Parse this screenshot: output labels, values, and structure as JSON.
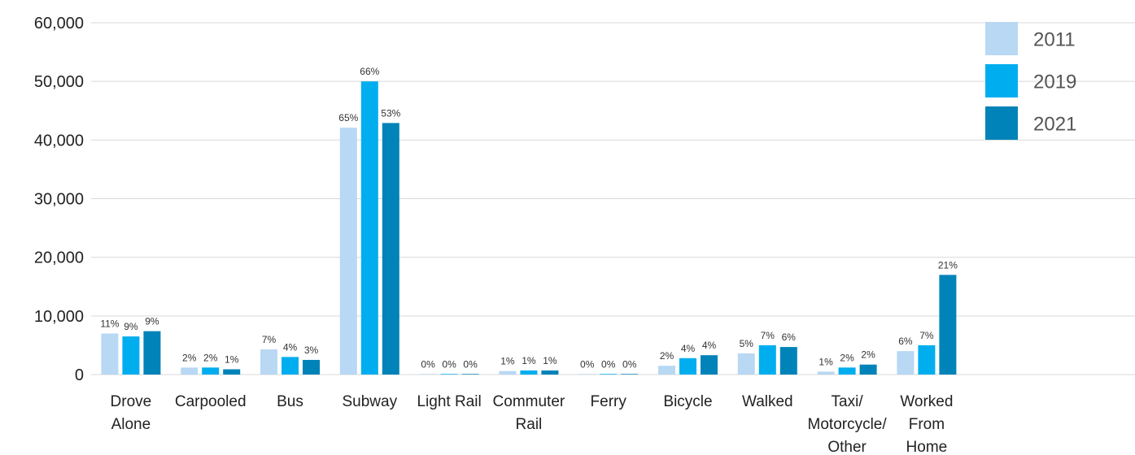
{
  "chart_data": {
    "type": "bar",
    "categories": [
      [
        "Drove",
        "Alone"
      ],
      [
        "Carpooled"
      ],
      [
        "Bus"
      ],
      [
        "Subway"
      ],
      [
        "Light Rail"
      ],
      [
        "Commuter",
        "Rail"
      ],
      [
        "Ferry"
      ],
      [
        "Bicycle"
      ],
      [
        "Walked"
      ],
      [
        "Taxi/",
        "Motorcycle/",
        "Other"
      ],
      [
        "Worked",
        "From",
        "Home"
      ]
    ],
    "series": [
      {
        "name": "2011",
        "color": "#b8d8f4",
        "values": [
          7000,
          1200,
          4300,
          42100,
          100,
          600,
          100,
          1500,
          3600,
          500,
          4000
        ],
        "labels": [
          "11%",
          "2%",
          "7%",
          "65%",
          "0%",
          "1%",
          "0%",
          "2%",
          "5%",
          "1%",
          "6%"
        ]
      },
      {
        "name": "2019",
        "color": "#00aeef",
        "values": [
          6500,
          1200,
          3000,
          50000,
          100,
          700,
          100,
          2800,
          5000,
          1200,
          5000
        ],
        "labels": [
          "9%",
          "2%",
          "4%",
          "66%",
          "0%",
          "1%",
          "0%",
          "4%",
          "7%",
          "2%",
          "7%"
        ]
      },
      {
        "name": "2021",
        "color": "#0083b8",
        "values": [
          7400,
          900,
          2500,
          42900,
          100,
          700,
          100,
          3300,
          4700,
          1700,
          17000
        ],
        "labels": [
          "9%",
          "1%",
          "3%",
          "53%",
          "0%",
          "1%",
          "0%",
          "4%",
          "6%",
          "2%",
          "21%"
        ]
      }
    ],
    "ylim": [
      0,
      60000
    ],
    "yticks": [
      0,
      10000,
      20000,
      30000,
      40000,
      50000,
      60000
    ],
    "ytick_labels": [
      "0",
      "10,000",
      "20,000",
      "30,000",
      "40,000",
      "50,000",
      "60,000"
    ],
    "grid": true,
    "legend_position": "top-right",
    "title": "",
    "xlabel": "",
    "ylabel": ""
  }
}
